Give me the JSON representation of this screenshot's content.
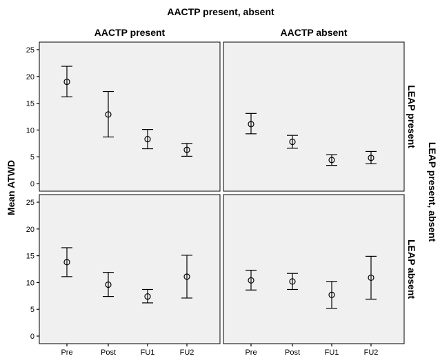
{
  "chart_data": {
    "type": "errorbar",
    "title": "AACTP present, absent",
    "ylabel": "Mean ATWD",
    "row_axis_label": "LEAP present, absent",
    "categories": [
      "Pre",
      "Post",
      "FU1",
      "FU2"
    ],
    "ylim": [
      0,
      25
    ],
    "yticks": [
      0,
      5,
      10,
      15,
      20,
      25
    ],
    "column_labels": [
      "AACTP present",
      "AACTP absent"
    ],
    "row_labels": [
      "LEAP present",
      "LEAP absent"
    ],
    "grid": false,
    "panels": [
      {
        "column": "AACTP present",
        "row": "LEAP present",
        "mean": [
          19.0,
          12.9,
          8.3,
          6.3
        ],
        "lower": [
          16.2,
          8.7,
          6.5,
          5.1
        ],
        "upper": [
          21.9,
          17.2,
          10.1,
          7.5
        ]
      },
      {
        "column": "AACTP absent",
        "row": "LEAP present",
        "mean": [
          11.1,
          7.8,
          4.4,
          4.8
        ],
        "lower": [
          9.3,
          6.6,
          3.4,
          3.7
        ],
        "upper": [
          13.1,
          9.0,
          5.4,
          6.0
        ]
      },
      {
        "column": "AACTP present",
        "row": "LEAP absent",
        "mean": [
          13.8,
          9.6,
          7.4,
          11.1
        ],
        "lower": [
          11.1,
          7.4,
          6.2,
          7.1
        ],
        "upper": [
          16.5,
          11.9,
          8.7,
          15.1
        ]
      },
      {
        "column": "AACTP absent",
        "row": "LEAP absent",
        "mean": [
          10.4,
          10.2,
          7.7,
          10.9
        ],
        "lower": [
          8.6,
          8.7,
          5.2,
          6.9
        ],
        "upper": [
          12.3,
          11.7,
          10.2,
          14.9
        ]
      }
    ]
  }
}
